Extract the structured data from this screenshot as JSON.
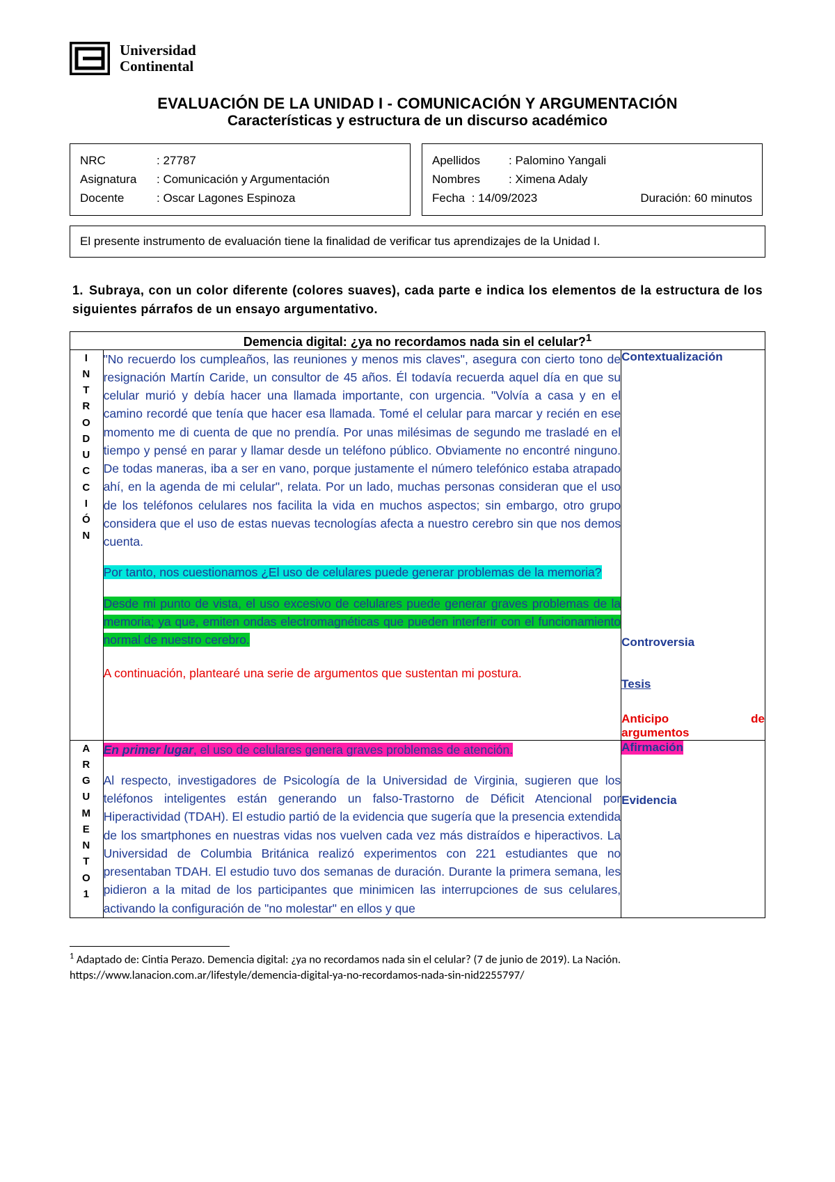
{
  "logo": {
    "line1": "Universidad",
    "line2": "Continental",
    "stroke_color": "#000000"
  },
  "header": {
    "title": "EVALUACIÓN DE LA UNIDAD I - COMUNICACIÓN Y ARGUMENTACIÓN",
    "subtitle": "Características y estructura de un discurso académico"
  },
  "info_left": {
    "nrc_label": "NRC",
    "nrc_val": "27787",
    "asig_label": "Asignatura",
    "asig_val": "Comunicación y Argumentación",
    "doc_label": "Docente",
    "doc_val": "Oscar Lagones Espinoza"
  },
  "info_right": {
    "ape_label": "Apellidos",
    "ape_val": "Palomino Yangali",
    "nom_label": "Nombres",
    "nom_val": "Ximena Adaly",
    "fecha_label": "Fecha",
    "fecha_val": "14/09/2023",
    "dur_label": "Duración:",
    "dur_val": "60 minutos"
  },
  "desc": "El presente instrumento de evaluación tiene la finalidad de verificar tus aprendizajes de la Unidad I.",
  "question": "Subraya, con un color diferente (colores suaves), cada parte e indica los elementos de la estructura de los siguientes párrafos de un ensayo argumentativo.",
  "essay_title": "Demencia digital: ¿ya no recordamos nada sin el celular?",
  "sup1": "1",
  "introduccion": {
    "vert": [
      "I",
      "N",
      "T",
      "R",
      "O",
      "D",
      "U",
      "C",
      "C",
      "I",
      "Ó",
      "N"
    ],
    "contextualizacion": "\"No recuerdo los cumpleaños, las reuniones y menos mis claves\", asegura con cierto tono de resignación Martín Caride, un consultor de 45 años. Él todavía recuerda aquel día en que su celular murió y debía hacer una llamada importante, con urgencia. \"Volvía a casa y en el camino recordé que tenía que hacer esa llamada. Tomé el celular para marcar y recién en ese momento me di cuenta de que no prendía. Por unas milésimas de segundo me trasladé en el tiempo y pensé en parar y llamar desde un teléfono público. Obviamente no encontré ninguno. De todas maneras, iba a ser en vano, porque justamente el número telefónico estaba atrapado ahí, en la agenda de mi celular\", relata. Por un lado, muchas personas consideran que el uso de los teléfonos celulares nos facilita la vida en muchos aspectos; sin embargo, otro grupo considera que el uso de estas nuevas tecnologías afecta a nuestro cerebro sin que nos demos cuenta.",
    "controversia": "Por tanto, nos cuestionamos ¿El uso de celulares puede generar problemas de la memoria?",
    "tesis": " Desde mi punto de vista, el uso excesivo de celulares puede generar graves problemas de la memoria; ya que, emiten ondas electromagnéticas que pueden interferir con el funcionamiento normal de nuestro cerebro.",
    "anticipo": "A continuación, plantearé una serie de argumentos que sustentan mi postura.",
    "side_context": "Contextualización",
    "side_controv": "Controversia",
    "side_tesis": "Tesis",
    "side_anticipo_a": "Anticipo",
    "side_anticipo_b": "de",
    "side_anticipo_c": "argumentos"
  },
  "argumento1": {
    "vert": [
      "A",
      "R",
      "G",
      "U",
      "M",
      "E",
      "N",
      "T",
      "O",
      "1"
    ],
    "afirmacion_first": "En primer lugar",
    "afirmacion_rest": ", el uso de celulares genera graves problemas de atención.",
    "evidencia": "Al respecto, investigadores de Psicología de la Universidad de Virginia, sugieren que los teléfonos inteligentes están generando un falso-Trastorno de Déficit Atencional por Hiperactividad (TDAH). El estudio partió de la evidencia que sugería que la presencia extendida de los smartphones en nuestras vidas nos vuelven cada vez más distraídos e hiperactivos. La Universidad de Columbia Británica realizó experimentos con 221 estudiantes que no presentaban TDAH. El estudio tuvo dos semanas de duración. Durante la primera semana, les pidieron a la mitad de los participantes que minimicen las interrupciones de sus celulares, activando la configuración de \"no molestar\" en ellos y que",
    "side_afirm": "Afirmación",
    "side_evid": "Evidencia"
  },
  "footnote": {
    "sup": "1",
    "text": " Adaptado de: Cintia Perazo. Demencia digital: ¿ya no recordamos nada sin el celular? (7 de junio de 2019). La Nación. https://www.lanacion.com.ar/lifestyle/demencia-digital-ya-no-recordamos-nada-sin-nid2255797/"
  },
  "colors": {
    "text_blue": "#1f3a93",
    "text_red": "#e40000",
    "hl_cyan": "#00e8db",
    "hl_green": "#00c72c",
    "hl_magenta": "#ff1fa8",
    "border": "#000000",
    "background": "#ffffff"
  }
}
